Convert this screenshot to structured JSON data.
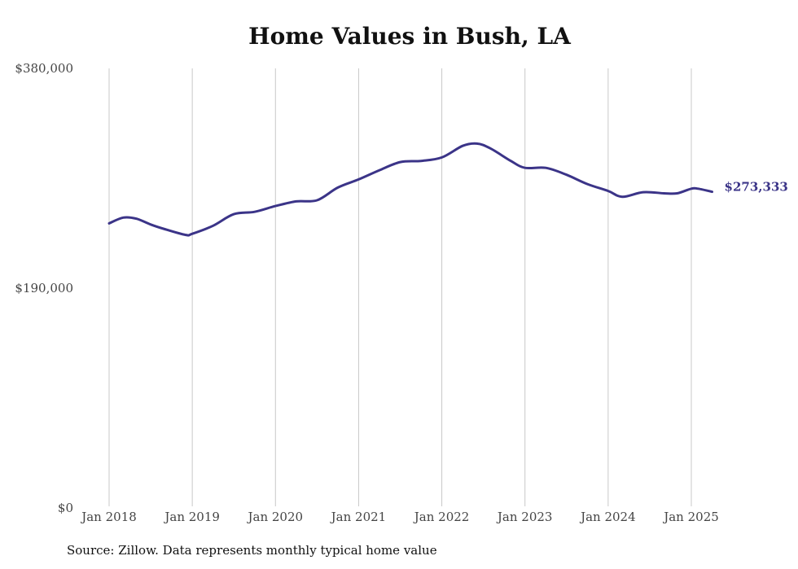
{
  "chart_data": {
    "type": "line",
    "title": "Home Values in Bush, LA",
    "xlabel": "",
    "ylabel": "",
    "ylim": [
      0,
      380000
    ],
    "yticks": [
      "$0",
      "$190,000",
      "$380,000"
    ],
    "ytick_values": [
      0,
      190000,
      380000
    ],
    "xticks": [
      "Jan 2018",
      "Jan 2019",
      "Jan 2020",
      "Jan 2021",
      "Jan 2022",
      "Jan 2023",
      "Jan 2024",
      "Jan 2025"
    ],
    "xtick_values": [
      2018,
      2019,
      2020,
      2021,
      2022,
      2023,
      2024,
      2025
    ],
    "grid": "vertical",
    "line_color": "#3b3488",
    "end_label": "$273,333",
    "series": [
      {
        "x": [
          2018.0,
          2018.17,
          2018.33,
          2018.5,
          2018.67,
          2018.92,
          2019.0,
          2019.25,
          2019.5,
          2019.75,
          2020.0,
          2020.25,
          2020.5,
          2020.75,
          2021.0,
          2021.25,
          2021.5,
          2021.75,
          2022.0,
          2022.25,
          2022.42,
          2022.58,
          2022.83,
          2023.0,
          2023.25,
          2023.5,
          2023.75,
          2024.0,
          2024.17,
          2024.42,
          2024.67,
          2024.83,
          2025.0,
          2025.08,
          2025.25
        ],
        "y": [
          246000,
          251000,
          250000,
          245000,
          241000,
          236000,
          237000,
          244000,
          254000,
          256000,
          261000,
          265000,
          266000,
          277000,
          284000,
          292000,
          299000,
          300000,
          303000,
          313000,
          315000,
          311000,
          300000,
          294000,
          294000,
          288000,
          280000,
          274000,
          269000,
          273000,
          272000,
          272000,
          276000,
          276000,
          273333
        ]
      }
    ]
  },
  "source_note": "Source: Zillow. Data represents monthly typical home value"
}
